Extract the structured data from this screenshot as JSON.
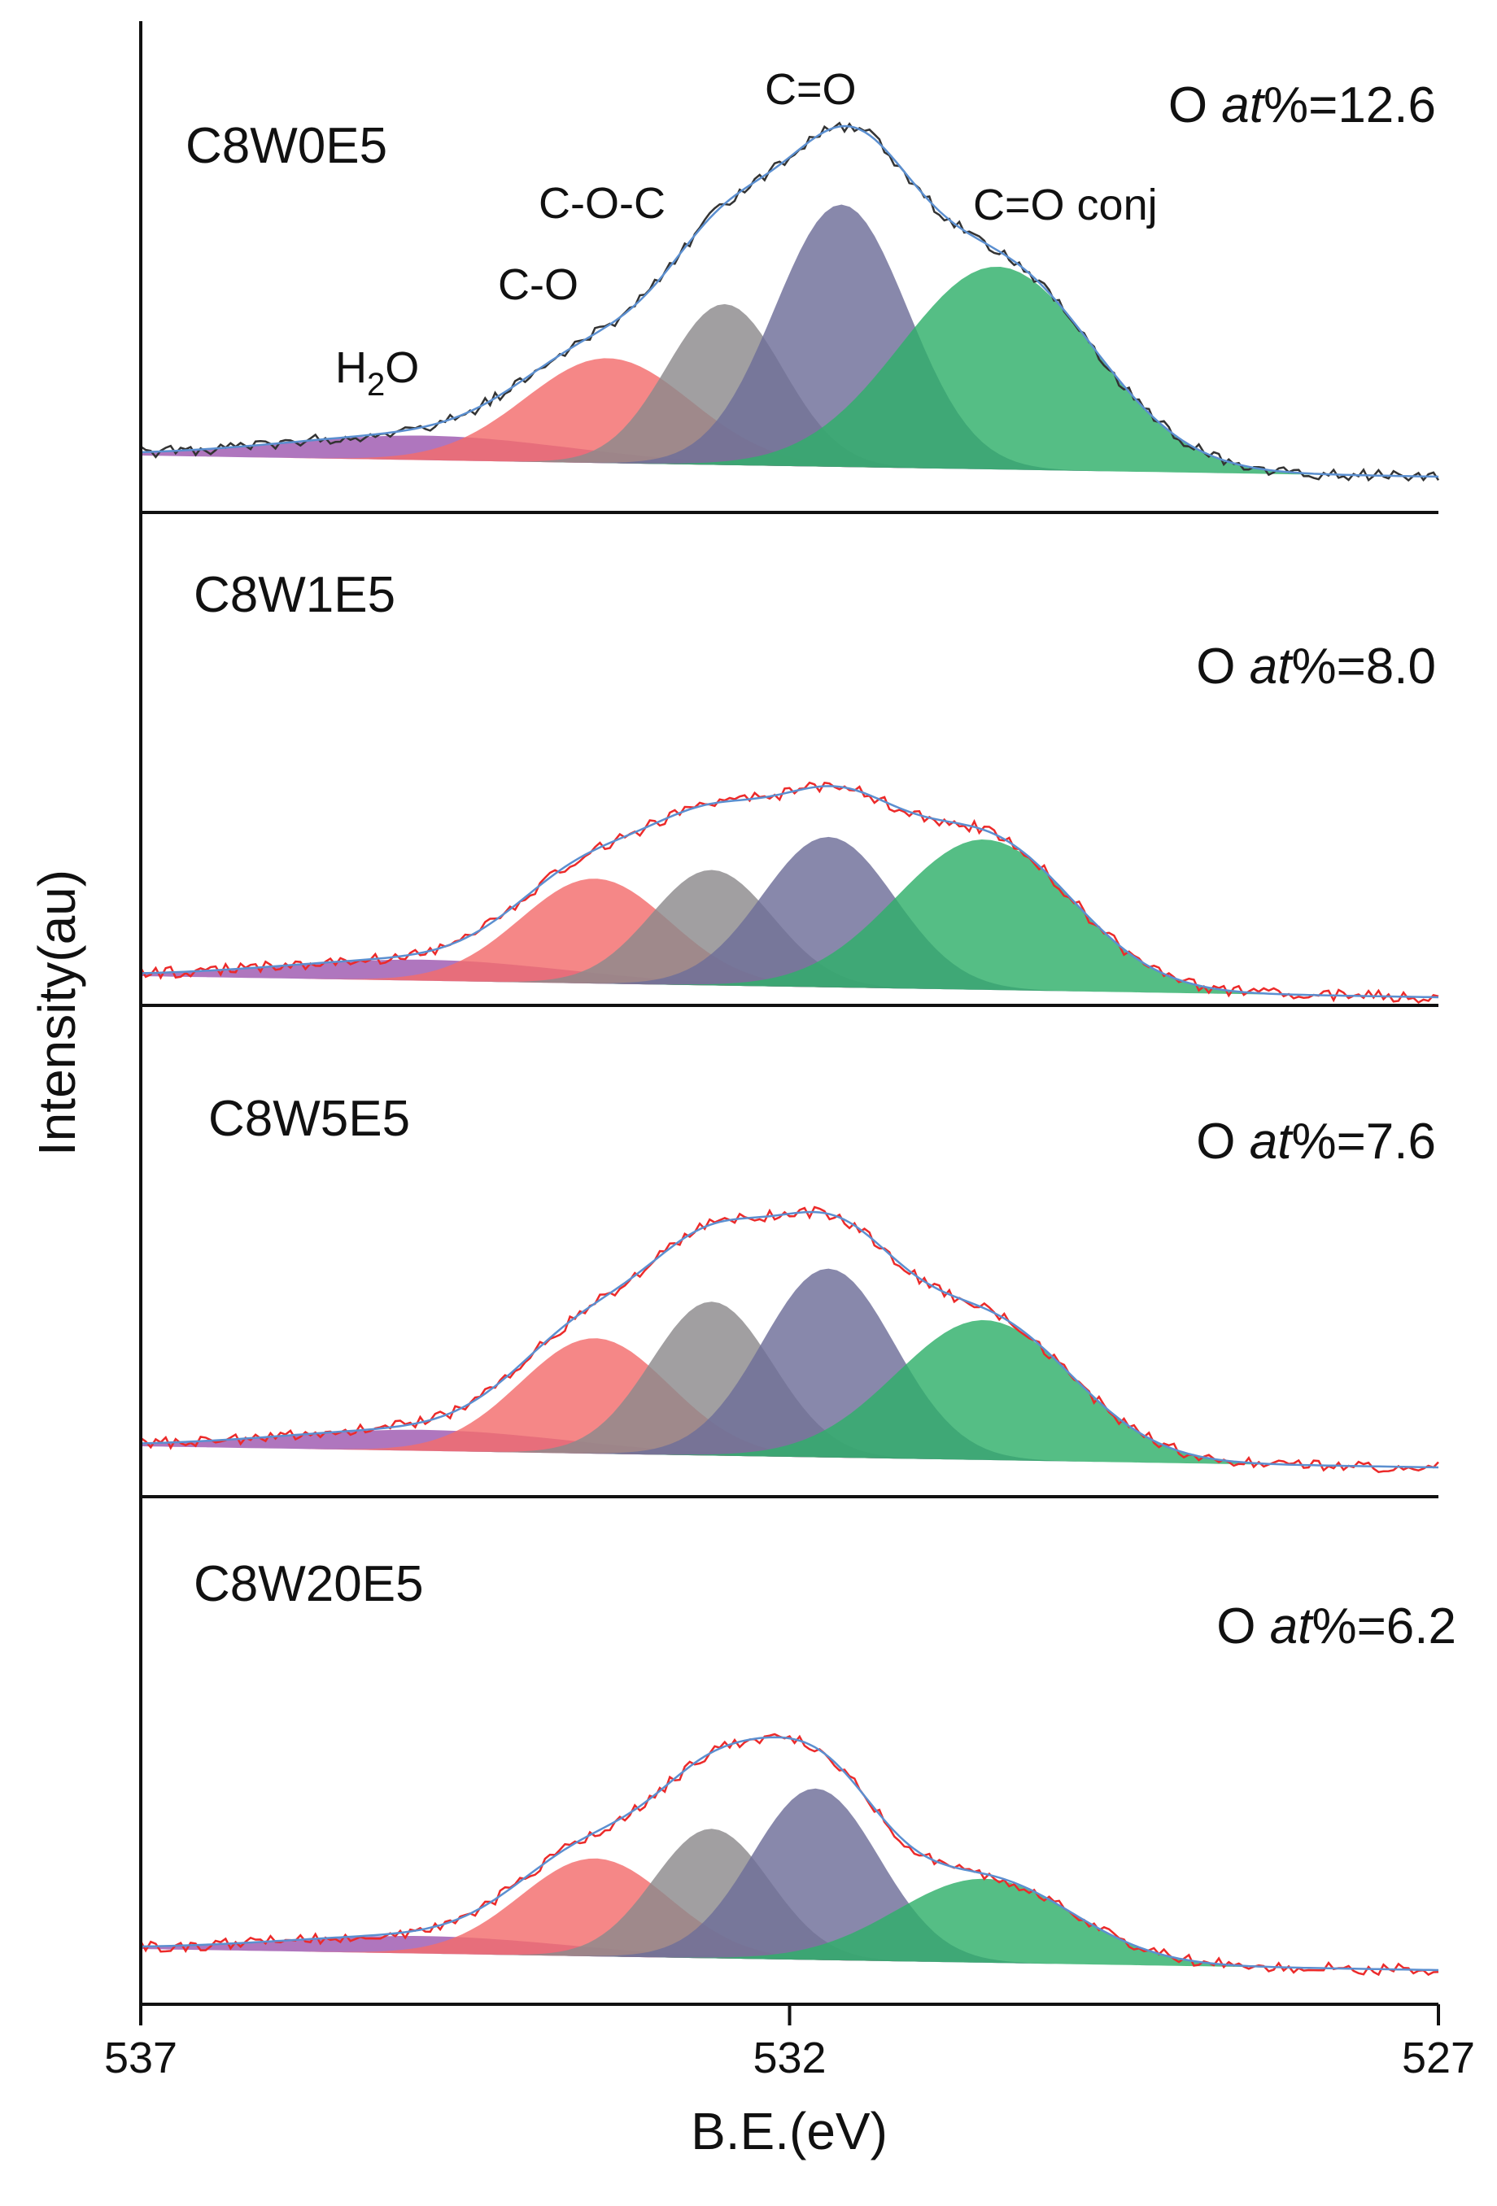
{
  "chart_data": {
    "type": "area",
    "xlabel": "B.E.(eV)",
    "ylabel": "Intensity(au)",
    "xlim": [
      537,
      527
    ],
    "x_reversed": true,
    "xticks": [
      {
        "value": 537,
        "label": "537"
      },
      {
        "value": 532,
        "label": "532"
      },
      {
        "value": 527,
        "label": "527"
      }
    ],
    "component_names": [
      "H2O",
      "C-O",
      "C-O-C",
      "C=O",
      "C=O conj"
    ],
    "component_labels": [
      {
        "name": "H2O",
        "text": "H",
        "sub": "2",
        "text2": "O"
      },
      {
        "name": "C-O",
        "text": "C-O"
      },
      {
        "name": "C-O-C",
        "text": "C-O-C"
      },
      {
        "name": "C=O",
        "text": "C=O"
      },
      {
        "name": "C=O conj",
        "text": "C=O conj"
      }
    ],
    "colors": {
      "H2O": "#9d58b0",
      "C-O": "#f36c6c",
      "C-O-C": "#8c8a8c",
      "C=O": "#6e6e98",
      "C=O conj": "#2fb06a",
      "envelope": "#5b8fd0",
      "raw_first": "#333333",
      "raw_other": "#ec2a2a"
    },
    "panels": [
      {
        "sample": "C8W0E5",
        "o_prefix": "O ",
        "o_italic": "at",
        "o_suffix": "%=12.6",
        "peaks": [
          {
            "name": "H2O",
            "center": 534.8,
            "amplitude": 0.07,
            "fwhm": 2.6
          },
          {
            "name": "C-O",
            "center": 533.4,
            "amplitude": 0.3,
            "fwhm": 1.5
          },
          {
            "name": "C-O-C",
            "center": 532.5,
            "amplitude": 0.46,
            "fwhm": 1.05
          },
          {
            "name": "C=O",
            "center": 531.6,
            "amplitude": 0.75,
            "fwhm": 1.2
          },
          {
            "name": "C=O conj",
            "center": 530.4,
            "amplitude": 0.58,
            "fwhm": 1.75
          }
        ]
      },
      {
        "sample": "C8W1E5",
        "o_prefix": "O ",
        "o_italic": "at",
        "o_suffix": "%=8.0",
        "peaks": [
          {
            "name": "H2O",
            "center": 534.8,
            "amplitude": 0.06,
            "fwhm": 2.6
          },
          {
            "name": "C-O",
            "center": 533.5,
            "amplitude": 0.3,
            "fwhm": 1.35
          },
          {
            "name": "C-O-C",
            "center": 532.6,
            "amplitude": 0.33,
            "fwhm": 1.1
          },
          {
            "name": "C=O",
            "center": 531.7,
            "amplitude": 0.43,
            "fwhm": 1.2
          },
          {
            "name": "C=O conj",
            "center": 530.5,
            "amplitude": 0.43,
            "fwhm": 1.6
          }
        ]
      },
      {
        "sample": "C8W5E5",
        "o_prefix": "O ",
        "o_italic": "at",
        "o_suffix": "%=7.6",
        "peaks": [
          {
            "name": "H2O",
            "center": 534.8,
            "amplitude": 0.06,
            "fwhm": 2.6
          },
          {
            "name": "C-O",
            "center": 533.5,
            "amplitude": 0.33,
            "fwhm": 1.35
          },
          {
            "name": "C-O-C",
            "center": 532.6,
            "amplitude": 0.44,
            "fwhm": 1.1
          },
          {
            "name": "C=O",
            "center": 531.7,
            "amplitude": 0.54,
            "fwhm": 1.2
          },
          {
            "name": "C=O conj",
            "center": 530.5,
            "amplitude": 0.4,
            "fwhm": 1.6
          }
        ]
      },
      {
        "sample": "C8W20E5",
        "o_prefix": "O ",
        "o_italic": "at",
        "o_suffix": "%=6.2",
        "peaks": [
          {
            "name": "H2O",
            "center": 534.8,
            "amplitude": 0.05,
            "fwhm": 2.6
          },
          {
            "name": "C-O",
            "center": 533.5,
            "amplitude": 0.28,
            "fwhm": 1.35
          },
          {
            "name": "C-O-C",
            "center": 532.6,
            "amplitude": 0.37,
            "fwhm": 1.05
          },
          {
            "name": "C=O",
            "center": 531.8,
            "amplitude": 0.49,
            "fwhm": 1.15
          },
          {
            "name": "C=O conj",
            "center": 530.5,
            "amplitude": 0.24,
            "fwhm": 1.6
          }
        ]
      }
    ]
  }
}
